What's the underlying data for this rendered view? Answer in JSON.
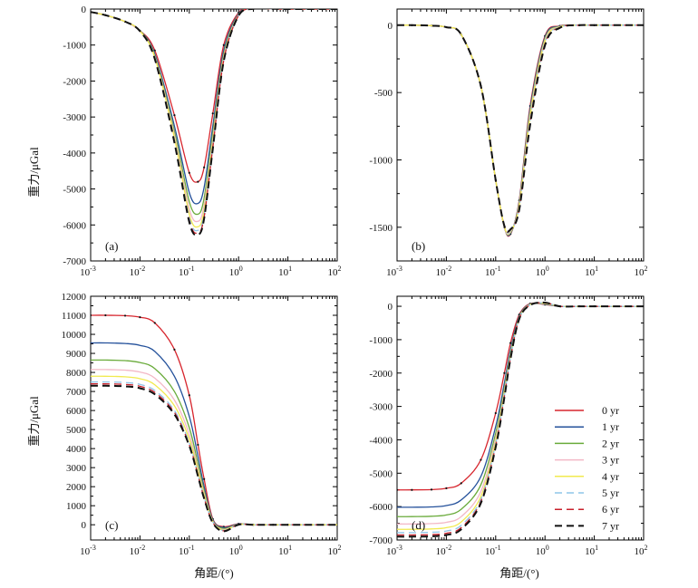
{
  "figure": {
    "ylabel": "重力/μGal",
    "xlabel": "角距/(°)"
  },
  "legend": [
    {
      "label": "0 yr",
      "color": "#d7262e",
      "dash": "solid"
    },
    {
      "label": "1 yr",
      "color": "#24519b",
      "dash": "solid"
    },
    {
      "label": "2 yr",
      "color": "#6aab3b",
      "dash": "solid"
    },
    {
      "label": "3 yr",
      "color": "#f3b8c6",
      "dash": "solid"
    },
    {
      "label": "4 yr",
      "color": "#f1ea4f",
      "dash": "solid"
    },
    {
      "label": "5 yr",
      "color": "#8ec5e8",
      "dash": "dashed"
    },
    {
      "label": "6 yr",
      "color": "#c8202b",
      "dash": "dashed"
    },
    {
      "label": "7 yr",
      "color": "#111111",
      "dash": "dashed"
    }
  ],
  "chart_data": [
    {
      "type": "line",
      "panel": "(a)",
      "xscale": "log",
      "xlim": [
        0.001,
        100
      ],
      "ylim": [
        -7000,
        0
      ],
      "xticks": [
        "10-3",
        "10-2",
        "10-1",
        "100",
        "101",
        "102"
      ],
      "yticks": [
        0,
        -1000,
        -2000,
        -3000,
        -4000,
        -5000,
        -6000,
        -7000
      ],
      "curve_shape": "trough",
      "x": [
        0.001,
        0.002,
        0.005,
        0.01,
        0.02,
        0.05,
        0.1,
        0.15,
        0.2,
        0.3,
        0.5,
        1,
        2,
        5,
        10,
        100
      ],
      "series": [
        {
          "name": "0 yr",
          "values": [
            -80,
            -170,
            -350,
            -600,
            -1150,
            -2950,
            -4550,
            -4800,
            -4400,
            -2900,
            -1000,
            -100,
            30,
            5,
            0,
            0
          ]
        },
        {
          "name": "1 yr",
          "values": [
            -80,
            -170,
            -350,
            -600,
            -1250,
            -3250,
            -5100,
            -5400,
            -4950,
            -3250,
            -1150,
            -130,
            20,
            5,
            0,
            0
          ]
        },
        {
          "name": "2 yr",
          "values": [
            -80,
            -170,
            -350,
            -600,
            -1300,
            -3400,
            -5350,
            -5700,
            -5250,
            -3450,
            -1250,
            -150,
            15,
            5,
            0,
            0
          ]
        },
        {
          "name": "3 yr",
          "values": [
            -80,
            -170,
            -350,
            -610,
            -1330,
            -3500,
            -5550,
            -5900,
            -5450,
            -3600,
            -1320,
            -160,
            10,
            5,
            0,
            0
          ]
        },
        {
          "name": "4 yr",
          "values": [
            -80,
            -170,
            -350,
            -610,
            -1350,
            -3580,
            -5700,
            -6050,
            -5600,
            -3700,
            -1370,
            -170,
            10,
            5,
            0,
            0
          ]
        },
        {
          "name": "5 yr",
          "values": [
            -80,
            -170,
            -350,
            -610,
            -1370,
            -3640,
            -5800,
            -6150,
            -5700,
            -3780,
            -1400,
            -175,
            8,
            5,
            0,
            0
          ]
        },
        {
          "name": "6 yr",
          "values": [
            -80,
            -170,
            -350,
            -615,
            -1380,
            -3680,
            -5870,
            -6220,
            -5780,
            -3840,
            -1430,
            -180,
            6,
            5,
            0,
            0
          ]
        },
        {
          "name": "7 yr",
          "values": [
            -80,
            -170,
            -350,
            -615,
            -1390,
            -3710,
            -5920,
            -6270,
            -5820,
            -3880,
            -1450,
            -185,
            5,
            5,
            0,
            0
          ]
        }
      ]
    },
    {
      "type": "line",
      "panel": "(b)",
      "xscale": "log",
      "xlim": [
        0.001,
        100
      ],
      "ylim": [
        -1750,
        120
      ],
      "xticks": [
        "10-3",
        "10-2",
        "10-1",
        "100",
        "101",
        "102"
      ],
      "yticks": [
        0,
        -500,
        -1000,
        -1500
      ],
      "curve_shape": "trough",
      "x": [
        0.001,
        0.002,
        0.005,
        0.01,
        0.02,
        0.05,
        0.1,
        0.15,
        0.2,
        0.3,
        0.5,
        1,
        2,
        5,
        10,
        100
      ],
      "series": [
        {
          "name": "0 yr",
          "values": [
            0,
            0,
            -3,
            -15,
            -70,
            -450,
            -1150,
            -1500,
            -1550,
            -1300,
            -600,
            -80,
            -5,
            0,
            0,
            0
          ]
        },
        {
          "name": "1 yr",
          "values": [
            0,
            0,
            -3,
            -15,
            -70,
            -450,
            -1150,
            -1500,
            -1545,
            -1310,
            -620,
            -90,
            -7,
            0,
            0,
            0
          ]
        },
        {
          "name": "2 yr",
          "values": [
            0,
            0,
            -3,
            -15,
            -70,
            -450,
            -1150,
            -1500,
            -1540,
            -1320,
            -640,
            -100,
            -9,
            0,
            0,
            0
          ]
        },
        {
          "name": "3 yr",
          "values": [
            0,
            0,
            -3,
            -15,
            -70,
            -450,
            -1150,
            -1500,
            -1535,
            -1330,
            -660,
            -110,
            -11,
            0,
            0,
            0
          ]
        },
        {
          "name": "4 yr",
          "values": [
            0,
            0,
            -3,
            -15,
            -70,
            -450,
            -1150,
            -1495,
            -1530,
            -1340,
            -680,
            -120,
            -13,
            0,
            0,
            0
          ]
        },
        {
          "name": "5 yr",
          "values": [
            0,
            0,
            -3,
            -15,
            -70,
            -450,
            -1150,
            -1495,
            -1525,
            -1350,
            -700,
            -130,
            -15,
            0,
            0,
            0
          ]
        },
        {
          "name": "6 yr",
          "values": [
            0,
            0,
            -3,
            -15,
            -70,
            -450,
            -1150,
            -1490,
            -1520,
            -1360,
            -720,
            -140,
            -17,
            0,
            0,
            0
          ]
        },
        {
          "name": "7 yr",
          "values": [
            0,
            0,
            -3,
            -15,
            -70,
            -450,
            -1150,
            -1490,
            -1515,
            -1370,
            -740,
            -150,
            -19,
            0,
            0,
            0
          ]
        }
      ]
    },
    {
      "type": "line",
      "panel": "(c)",
      "xscale": "log",
      "xlim": [
        0.001,
        100
      ],
      "ylim": [
        -800,
        12000
      ],
      "xticks": [
        "10-3",
        "10-2",
        "10-1",
        "100",
        "101",
        "102"
      ],
      "yticks": [
        0,
        1000,
        2000,
        3000,
        4000,
        5000,
        6000,
        7000,
        8000,
        9000,
        10000,
        11000,
        12000
      ],
      "curve_shape": "plateau-down",
      "x": [
        0.001,
        0.002,
        0.005,
        0.01,
        0.02,
        0.05,
        0.1,
        0.15,
        0.2,
        0.3,
        0.5,
        1,
        2,
        5,
        10,
        100
      ],
      "series": [
        {
          "name": "0 yr",
          "values": [
            11000,
            11000,
            10980,
            10900,
            10600,
            9200,
            6800,
            4200,
            2400,
            300,
            -100,
            50,
            0,
            0,
            0,
            0
          ]
        },
        {
          "name": "1 yr",
          "values": [
            9550,
            9550,
            9520,
            9420,
            9100,
            7800,
            5700,
            3600,
            2000,
            250,
            -150,
            40,
            0,
            0,
            0,
            0
          ]
        },
        {
          "name": "2 yr",
          "values": [
            8650,
            8650,
            8620,
            8520,
            8200,
            7000,
            5100,
            3200,
            1800,
            200,
            -200,
            30,
            0,
            0,
            0,
            0
          ]
        },
        {
          "name": "3 yr",
          "values": [
            8150,
            8150,
            8120,
            8020,
            7700,
            6550,
            4750,
            2950,
            1650,
            180,
            -250,
            25,
            0,
            0,
            0,
            0
          ]
        },
        {
          "name": "4 yr",
          "values": [
            7800,
            7800,
            7770,
            7670,
            7350,
            6250,
            4500,
            2800,
            1550,
            160,
            -280,
            20,
            0,
            0,
            0,
            0
          ]
        },
        {
          "name": "5 yr",
          "values": [
            7500,
            7500,
            7470,
            7370,
            7050,
            6000,
            4300,
            2650,
            1450,
            140,
            -300,
            15,
            0,
            0,
            0,
            0
          ]
        },
        {
          "name": "6 yr",
          "values": [
            7400,
            7400,
            7370,
            7270,
            6950,
            5900,
            4200,
            2600,
            1400,
            120,
            -320,
            10,
            0,
            0,
            0,
            0
          ]
        },
        {
          "name": "7 yr",
          "values": [
            7300,
            7300,
            7270,
            7170,
            6850,
            5800,
            4150,
            2550,
            1380,
            100,
            -340,
            5,
            0,
            0,
            0,
            0
          ]
        }
      ]
    },
    {
      "type": "line",
      "panel": "(d)",
      "xscale": "log",
      "xlim": [
        0.001,
        100
      ],
      "ylim": [
        -7000,
        300
      ],
      "xticks": [
        "10-3",
        "10-2",
        "10-1",
        "100",
        "101",
        "102"
      ],
      "yticks": [
        0,
        -1000,
        -2000,
        -3000,
        -4000,
        -5000,
        -6000,
        -7000
      ],
      "curve_shape": "step-up",
      "x": [
        0.001,
        0.002,
        0.005,
        0.01,
        0.02,
        0.05,
        0.1,
        0.15,
        0.2,
        0.3,
        0.5,
        1,
        2,
        5,
        10,
        100
      ],
      "series": [
        {
          "name": "0 yr",
          "values": [
            -5500,
            -5500,
            -5490,
            -5450,
            -5300,
            -4600,
            -3200,
            -2000,
            -1100,
            -250,
            80,
            50,
            0,
            0,
            0,
            0
          ]
        },
        {
          "name": "1 yr",
          "values": [
            -6020,
            -6020,
            -6010,
            -5970,
            -5800,
            -5100,
            -3600,
            -2300,
            -1300,
            -300,
            70,
            60,
            0,
            0,
            0,
            0
          ]
        },
        {
          "name": "2 yr",
          "values": [
            -6300,
            -6300,
            -6290,
            -6250,
            -6080,
            -5350,
            -3800,
            -2450,
            -1400,
            -330,
            60,
            70,
            0,
            0,
            0,
            0
          ]
        },
        {
          "name": "3 yr",
          "values": [
            -6520,
            -6520,
            -6510,
            -6470,
            -6300,
            -5550,
            -3950,
            -2550,
            -1460,
            -350,
            55,
            80,
            0,
            0,
            0,
            0
          ]
        },
        {
          "name": "4 yr",
          "values": [
            -6680,
            -6680,
            -6670,
            -6630,
            -6460,
            -5700,
            -4060,
            -2620,
            -1500,
            -360,
            50,
            90,
            0,
            0,
            0,
            0
          ]
        },
        {
          "name": "5 yr",
          "values": [
            -6780,
            -6780,
            -6770,
            -6730,
            -6560,
            -5790,
            -4130,
            -2670,
            -1530,
            -370,
            45,
            100,
            0,
            0,
            0,
            0
          ]
        },
        {
          "name": "6 yr",
          "values": [
            -6850,
            -6850,
            -6840,
            -6800,
            -6630,
            -5850,
            -4180,
            -2700,
            -1550,
            -375,
            40,
            105,
            0,
            0,
            0,
            0
          ]
        },
        {
          "name": "7 yr",
          "values": [
            -6900,
            -6900,
            -6890,
            -6850,
            -6680,
            -5900,
            -4220,
            -2730,
            -1570,
            -380,
            35,
            110,
            0,
            0,
            0,
            0
          ]
        }
      ]
    }
  ]
}
